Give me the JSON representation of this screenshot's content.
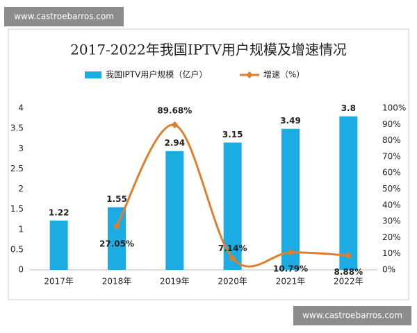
{
  "watermarks": [
    "www.castroebarros.com",
    "www.castroebarros.com"
  ],
  "chart_data": {
    "type": "bar",
    "title": "2017-2022年我国IPTV用户规模及增速情况",
    "categories": [
      "2017年",
      "2018年",
      "2019年",
      "2020年",
      "2021年",
      "2022年"
    ],
    "series": [
      {
        "name": "我国IPTV用户规模（亿户）",
        "type": "bar",
        "color": "#1cace4",
        "values": [
          1.22,
          1.55,
          2.94,
          3.15,
          3.49,
          3.8
        ]
      },
      {
        "name": "增速（%）",
        "type": "line",
        "axis": "y2",
        "color": "#e07e2c",
        "values": [
          null,
          27.05,
          89.68,
          7.14,
          10.79,
          8.88
        ],
        "value_labels": [
          null,
          "27.05%",
          "89.68%",
          "7.14%",
          "10.79%",
          "8.88%"
        ]
      }
    ],
    "ylim": [
      0,
      4
    ],
    "yticks": [
      0,
      0.5,
      1,
      1.5,
      2,
      2.5,
      3,
      3.5,
      4
    ],
    "y2lim": [
      0,
      100
    ],
    "y2ticks": [
      {
        "value": 0,
        "label": "0%"
      },
      {
        "value": 10,
        "label": "10%"
      },
      {
        "value": 20,
        "label": "20%"
      },
      {
        "value": 30,
        "label": "30%"
      },
      {
        "value": 40,
        "label": "40%"
      },
      {
        "value": 50,
        "label": "50%"
      },
      {
        "value": 60,
        "label": "60%"
      },
      {
        "value": 70,
        "label": "70%"
      },
      {
        "value": 80,
        "label": "80%"
      },
      {
        "value": 90,
        "label": "90%"
      },
      {
        "value": 100,
        "label": "100%"
      }
    ],
    "grid": false,
    "legend": "top"
  }
}
